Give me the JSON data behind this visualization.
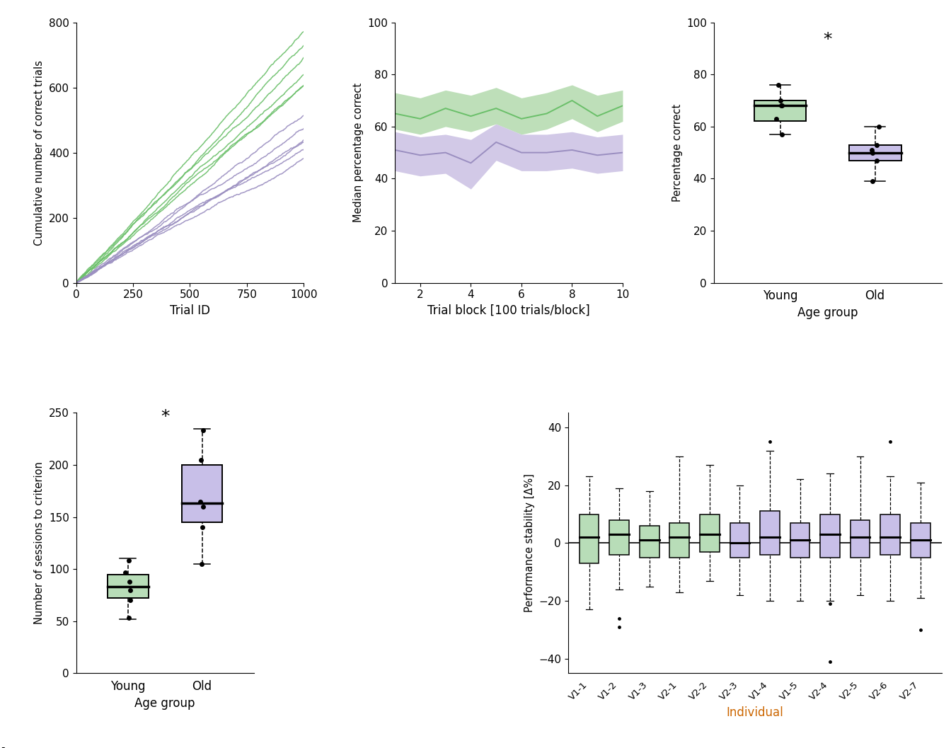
{
  "colors": {
    "young_line": "#6abf69",
    "young_fill": "#a8d5a2",
    "young_box": "#b8ddb8",
    "old_line": "#9a8ec0",
    "old_fill": "#c3b8e0",
    "old_box": "#c8bfe8",
    "black": "#000000",
    "xlabel_orange": "#cc6600"
  },
  "panel_a": {
    "young_slopes": [
      0.77,
      0.72,
      0.66,
      0.63,
      0.61,
      0.6
    ],
    "old_slopes": [
      0.52,
      0.48,
      0.46,
      0.44,
      0.42,
      0.4
    ],
    "xlabel": "Trial ID",
    "ylabel": "Cumulative number of correct trials",
    "xlim": [
      0,
      1000
    ],
    "ylim": [
      0,
      800
    ],
    "xticks": [
      0,
      250,
      500,
      750,
      1000
    ],
    "yticks": [
      0,
      200,
      400,
      600,
      800
    ]
  },
  "panel_b": {
    "young_median": [
      65,
      63,
      67,
      64,
      67,
      63,
      65,
      70,
      64,
      68
    ],
    "young_ci_low": [
      59,
      57,
      60,
      58,
      61,
      57,
      59,
      63,
      58,
      62
    ],
    "young_ci_high": [
      73,
      71,
      74,
      72,
      75,
      71,
      73,
      76,
      72,
      74
    ],
    "old_median": [
      51,
      49,
      50,
      46,
      54,
      50,
      50,
      51,
      49,
      50
    ],
    "old_ci_low": [
      43,
      41,
      42,
      36,
      47,
      43,
      43,
      44,
      42,
      43
    ],
    "old_ci_high": [
      58,
      56,
      57,
      55,
      61,
      57,
      57,
      58,
      56,
      57
    ],
    "xlabel": "Trial block [100 trials/block]",
    "ylabel": "Median percentage correct",
    "xlim": [
      1,
      10
    ],
    "ylim": [
      0,
      100
    ],
    "xticks": [
      2,
      4,
      6,
      8,
      10
    ],
    "yticks": [
      0,
      20,
      40,
      60,
      80,
      100
    ]
  },
  "panel_c": {
    "young_q1": 62,
    "young_median": 68,
    "young_q3": 70,
    "young_whisker_low": 57,
    "young_whisker_high": 76,
    "young_points": [
      57,
      63,
      68,
      68,
      70,
      76
    ],
    "old_q1": 47,
    "old_median": 50,
    "old_q3": 53,
    "old_whisker_low": 39,
    "old_whisker_high": 60,
    "old_points": [
      39,
      47,
      50,
      51,
      53,
      60
    ],
    "categories": [
      "Young",
      "Old"
    ],
    "xlabel": "Age group",
    "ylabel": "Percentage correct",
    "ylim": [
      0,
      100
    ],
    "yticks": [
      0,
      20,
      40,
      60,
      80,
      100
    ],
    "significance": "*",
    "sig_x": 1.5,
    "sig_y": 90
  },
  "panel_d": {
    "young_q1": 72,
    "young_median": 83,
    "young_q3": 95,
    "young_whisker_low": 52,
    "young_whisker_high": 110,
    "young_points": [
      53,
      70,
      80,
      88,
      97,
      108
    ],
    "old_q1": 145,
    "old_median": 163,
    "old_q3": 200,
    "old_whisker_low": 105,
    "old_whisker_high": 235,
    "old_points": [
      105,
      140,
      160,
      165,
      205,
      233
    ],
    "categories": [
      "Young",
      "Old"
    ],
    "xlabel": "Age group",
    "ylabel": "Number of sessions to criterion",
    "ylim": [
      0,
      250
    ],
    "yticks": [
      0,
      50,
      100,
      150,
      200,
      250
    ],
    "significance": "*",
    "sig_x": 1.5,
    "sig_y": 238
  },
  "panel_f": {
    "individuals": [
      "V1-1",
      "V1-2",
      "V1-3",
      "V2-1",
      "V2-2",
      "V2-3",
      "V1-4",
      "V1-5",
      "V2-4",
      "V2-5",
      "V2-6",
      "V2-7"
    ],
    "group": [
      "young",
      "young",
      "young",
      "young",
      "young",
      "old",
      "old",
      "old",
      "old",
      "old",
      "old",
      "old"
    ],
    "medians": [
      2,
      3,
      1,
      2,
      3,
      0,
      2,
      1,
      3,
      2,
      2,
      1
    ],
    "q1s": [
      -7,
      -4,
      -5,
      -5,
      -3,
      -5,
      -4,
      -5,
      -5,
      -5,
      -4,
      -5
    ],
    "q3s": [
      10,
      8,
      6,
      7,
      10,
      7,
      11,
      7,
      10,
      8,
      10,
      7
    ],
    "whisker_lows": [
      -23,
      -16,
      -15,
      -17,
      -13,
      -18,
      -20,
      -20,
      -20,
      -18,
      -20,
      -19
    ],
    "whisker_highs": [
      23,
      19,
      18,
      30,
      27,
      20,
      32,
      22,
      24,
      30,
      23,
      21
    ],
    "outliers": [
      [],
      [
        -26,
        -29
      ],
      [],
      [],
      [],
      [],
      [
        35
      ],
      [],
      [
        -21,
        -41
      ],
      [],
      [
        35
      ],
      [
        -30
      ]
    ],
    "xlabel": "Individual",
    "ylabel": "Performance stability [Δ%]",
    "ylim": [
      -45,
      45
    ],
    "yticks": [
      -40,
      -20,
      0,
      20,
      40
    ]
  }
}
